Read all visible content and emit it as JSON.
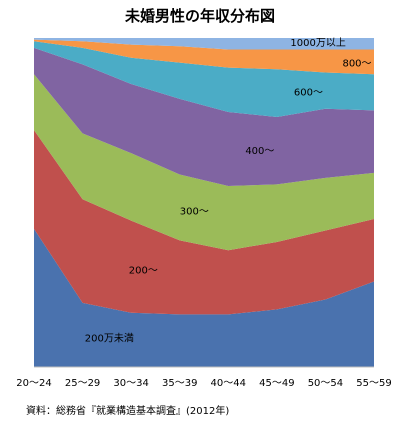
{
  "chart_data": {
    "type": "area",
    "stacked": true,
    "percent_stacked": true,
    "title": "未婚男性の年収分布図",
    "categories": [
      "20〜24",
      "25〜29",
      "30〜34",
      "35〜39",
      "40〜44",
      "45〜49",
      "50〜54",
      "55〜59"
    ],
    "ylim": [
      0,
      100
    ],
    "grid": false,
    "legend": "none",
    "series": [
      {
        "name": "200万未満",
        "color": "#4a72ae",
        "values": [
          42.0,
          19.5,
          16.5,
          16.0,
          16.0,
          17.5,
          20.5,
          26.0
        ]
      },
      {
        "name": "200〜",
        "color": "#c0504d",
        "values": [
          30.0,
          31.5,
          28.0,
          22.5,
          19.5,
          20.5,
          21.0,
          19.0
        ]
      },
      {
        "name": "300〜",
        "color": "#9bbb59",
        "values": [
          17.0,
          20.0,
          20.5,
          20.0,
          19.5,
          17.5,
          16.0,
          14.0
        ]
      },
      {
        "name": "400〜",
        "color": "#8064a2",
        "values": [
          8.0,
          21.0,
          21.0,
          23.0,
          22.5,
          20.5,
          21.0,
          19.0
        ]
      },
      {
        "name": "600〜",
        "color": "#4bacc6",
        "values": [
          2.0,
          5.0,
          8.0,
          11.0,
          13.5,
          14.5,
          11.0,
          11.0
        ]
      },
      {
        "name": "800〜",
        "color": "#f79646",
        "values": [
          0.5,
          2.0,
          4.0,
          5.0,
          5.5,
          6.0,
          7.0,
          7.5
        ]
      },
      {
        "name": "1000万以上",
        "color": "#8eb4e3",
        "values": [
          0.5,
          1.0,
          2.0,
          2.5,
          3.5,
          3.5,
          3.5,
          3.5
        ]
      }
    ],
    "source_note": "資料：総務省『就業構造基本調査』(2012年)"
  }
}
